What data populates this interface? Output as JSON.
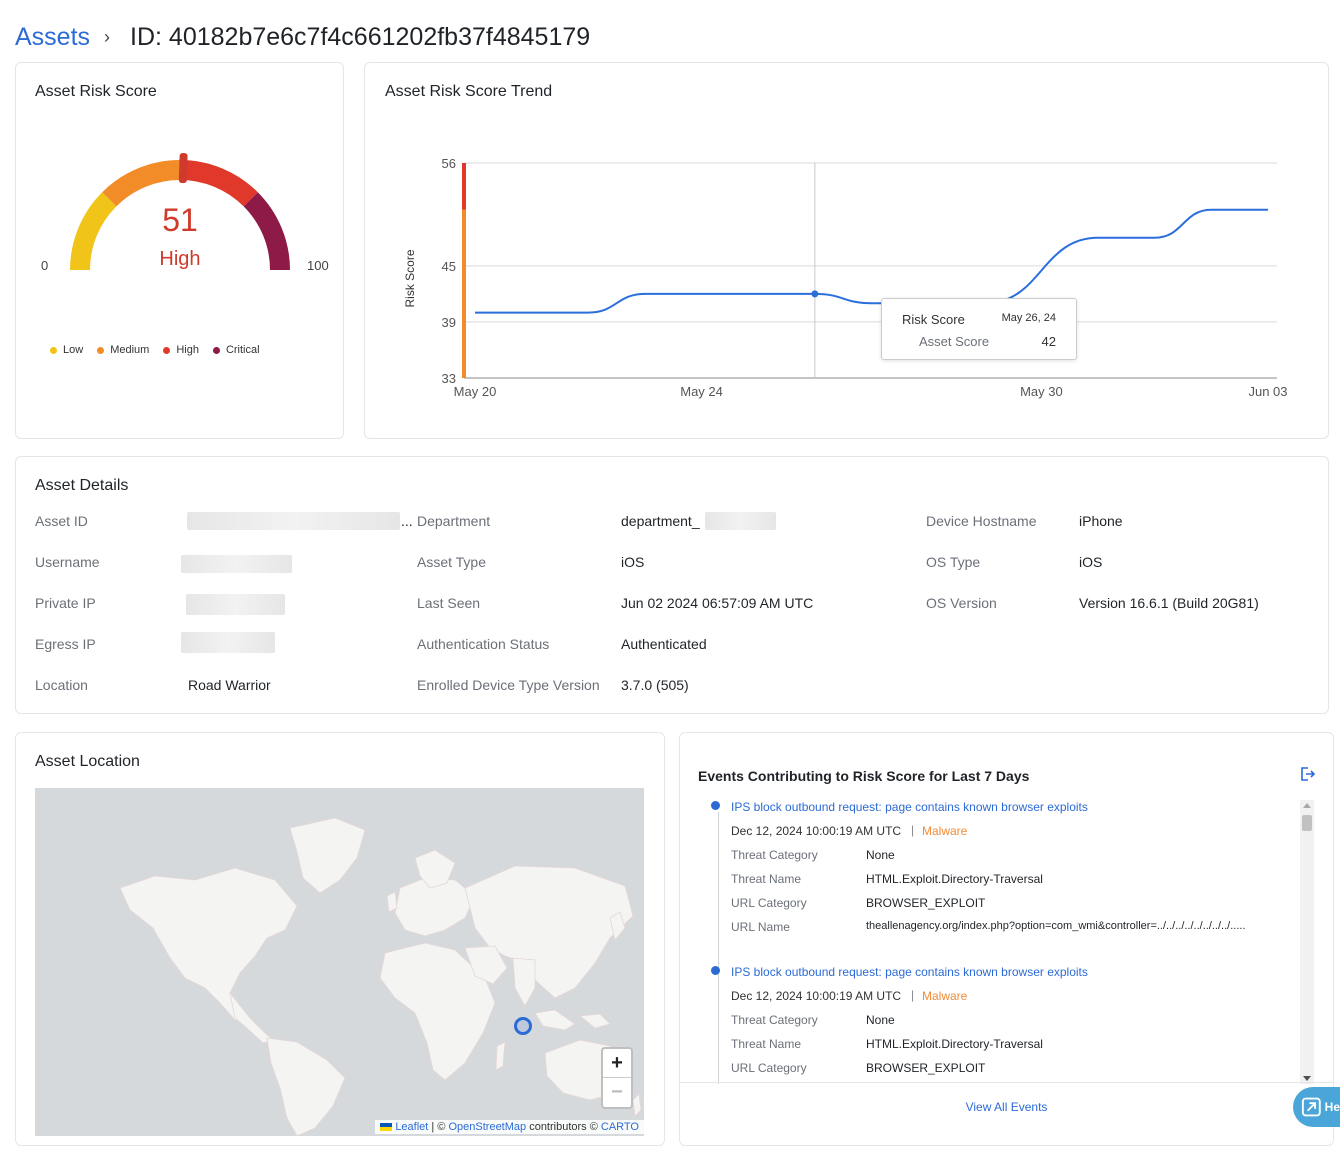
{
  "breadcrumb": {
    "parent": "Assets",
    "separator": "›",
    "current": "ID: 40182b7e6c7f4c661202fb37f4845179"
  },
  "risk_score_card": {
    "title": "Asset Risk Score",
    "score": "51",
    "level": "High",
    "min_label": "0",
    "max_label": "100",
    "score_value": 51,
    "legend": [
      {
        "label": "Low",
        "color": "#f0c419"
      },
      {
        "label": "Medium",
        "color": "#f28c28"
      },
      {
        "label": "High",
        "color": "#e0392b"
      },
      {
        "label": "Critical",
        "color": "#8e1b47"
      }
    ],
    "score_color": "#d03a2c"
  },
  "trend_card": {
    "title": "Asset Risk Score Trend"
  },
  "chart_data": {
    "type": "line",
    "title": "Asset Risk Score Trend",
    "ylabel": "Risk Score",
    "xlabel": "",
    "y_ticks": [
      "56",
      "45",
      "39",
      "33"
    ],
    "x_ticks": [
      "May 20",
      "May 24",
      "May 30",
      "Jun 03"
    ],
    "ylim": [
      33,
      56
    ],
    "grid": true,
    "series": [
      {
        "color": "#2a6fdb",
        "points": [
          {
            "x": "May 20",
            "y": 40
          },
          {
            "x": "May 22",
            "y": 40
          },
          {
            "x": "May 23",
            "y": 42
          },
          {
            "x": "May 26",
            "y": 42
          },
          {
            "x": "May 27",
            "y": 41
          },
          {
            "x": "May 29",
            "y": 41
          },
          {
            "x": "May 31",
            "y": 48
          },
          {
            "x": "Jun 01",
            "y": 48
          },
          {
            "x": "Jun 02",
            "y": 51
          },
          {
            "x": "Jun 03",
            "y": 51
          }
        ]
      }
    ],
    "tooltip": {
      "title": "Risk Score",
      "date": "May 26, 24",
      "series": "Asset Score",
      "value": "42"
    }
  },
  "details_card": {
    "title": "Asset Details",
    "col1": [
      {
        "label": "Asset ID",
        "value": "..."
      },
      {
        "label": "Username",
        "value": ""
      },
      {
        "label": "Private IP",
        "value": ""
      },
      {
        "label": "Egress IP",
        "value": ""
      },
      {
        "label": "Location",
        "value": "Road Warrior"
      }
    ],
    "col2": [
      {
        "label": "Department",
        "value": "department_"
      },
      {
        "label": "Asset Type",
        "value": "iOS"
      },
      {
        "label": "Last Seen",
        "value": "Jun 02 2024 06:57:09 AM UTC"
      },
      {
        "label": "Authentication Status",
        "value": "Authenticated"
      },
      {
        "label": "Enrolled Device Type Version",
        "value": "3.7.0 (505)"
      }
    ],
    "col3": [
      {
        "label": "Device Hostname",
        "value": "iPhone"
      },
      {
        "label": "OS Type",
        "value": "iOS"
      },
      {
        "label": "OS Version",
        "value": "Version 16.6.1 (Build 20G81)"
      }
    ]
  },
  "location_card": {
    "title": "Asset Location",
    "zoom_in": "+",
    "zoom_out": "−",
    "attribution": {
      "leaflet": "Leaflet",
      "sep": " | © ",
      "osm": "OpenStreetMap",
      "contributors": " contributors © ",
      "carto": "CARTO"
    }
  },
  "events_card": {
    "title": "Events Contributing to Risk Score for Last 7 Days",
    "view_all": "View All Events",
    "help_label": "He",
    "events": [
      {
        "title": "IPS block outbound request: page contains known browser exploits",
        "date": "Dec 12, 2024 10:00:19 AM UTC",
        "sep": "|",
        "tag": "Malware",
        "fields": [
          {
            "k": "Threat Category",
            "v": "None"
          },
          {
            "k": "Threat Name",
            "v": "HTML.Exploit.Directory-Traversal"
          },
          {
            "k": "URL Category",
            "v": "BROWSER_EXPLOIT"
          },
          {
            "k": "URL Name",
            "v": "theallenagency.org/index.php?option=com_wmi&controller=../../../../../../../../....."
          }
        ]
      },
      {
        "title": "IPS block outbound request: page contains known browser exploits",
        "date": "Dec 12, 2024 10:00:19 AM UTC",
        "sep": "|",
        "tag": "Malware",
        "fields": [
          {
            "k": "Threat Category",
            "v": "None"
          },
          {
            "k": "Threat Name",
            "v": "HTML.Exploit.Directory-Traversal"
          },
          {
            "k": "URL Category",
            "v": "BROWSER_EXPLOIT"
          }
        ]
      }
    ]
  }
}
